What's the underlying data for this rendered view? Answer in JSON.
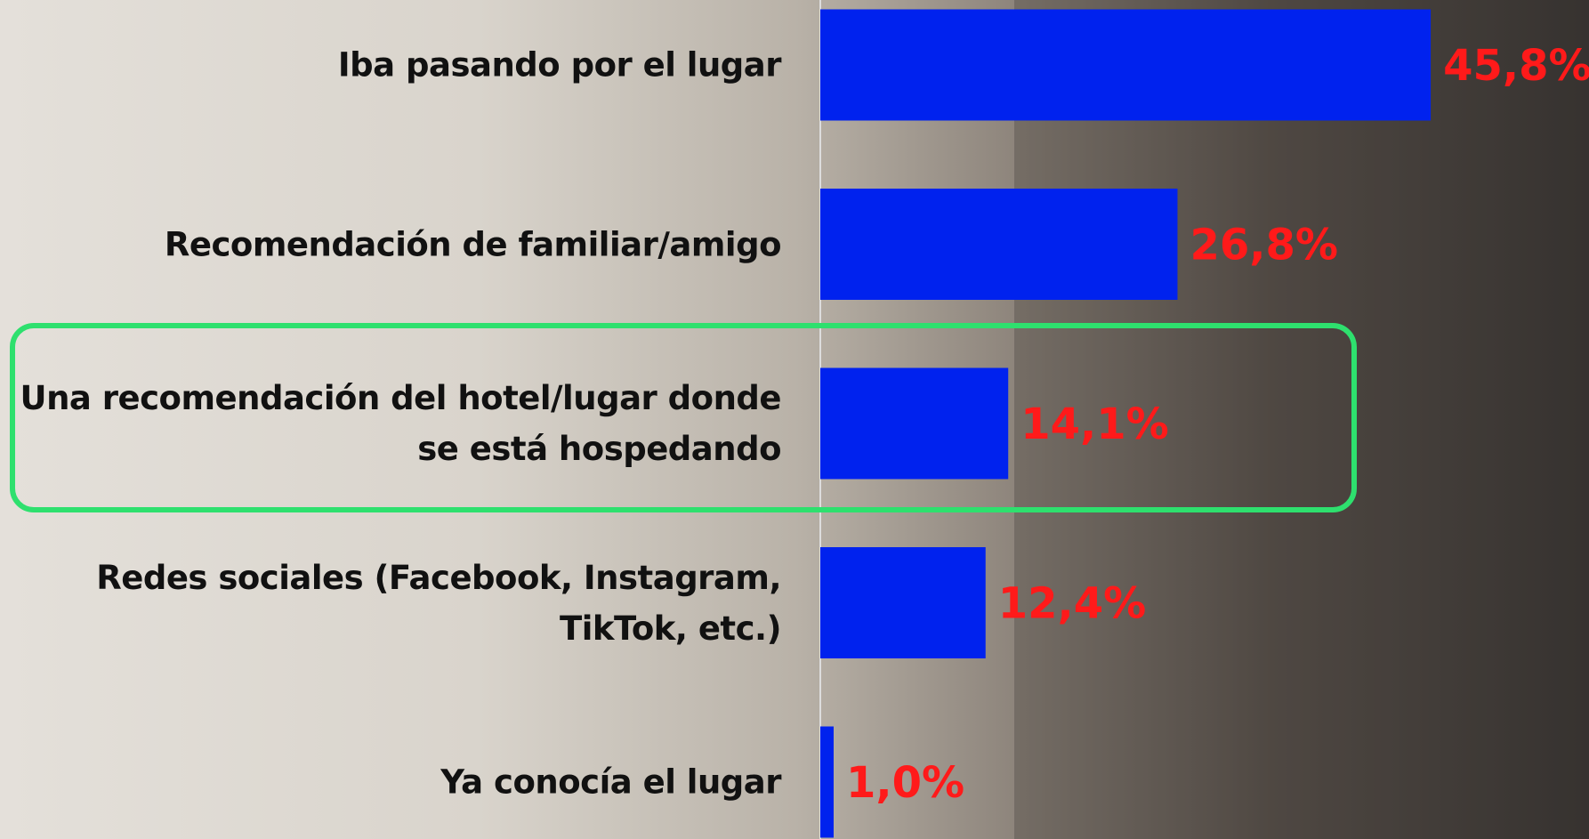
{
  "chart_data": {
    "type": "barh",
    "categories": [
      "Iba pasando por el lugar",
      "Recomendación de familiar/amigo",
      "Una recomendación del hotel/lugar donde se está hospedando",
      "Redes sociales (Facebook, Instagram, TikTok, etc.)",
      "Ya conocía el lugar"
    ],
    "values": [
      45.8,
      26.8,
      14.1,
      12.4,
      1.0
    ],
    "value_labels": [
      "45,8%",
      "26,8%",
      "14,1%",
      "12,4%",
      "1,0%"
    ],
    "color": "#0022ee",
    "label_color": "#ff1a1a"
  }
}
